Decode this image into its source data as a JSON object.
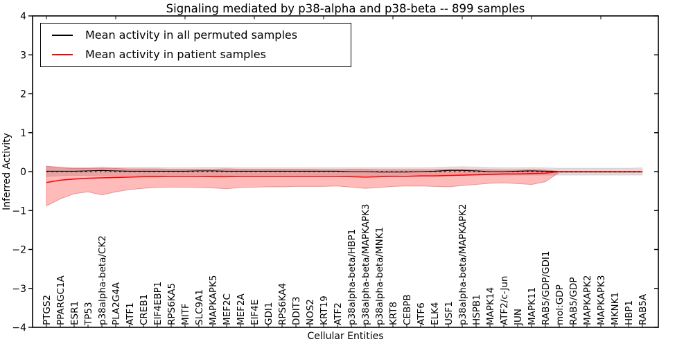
{
  "figure": {
    "title": "Signaling mediated by p38-alpha and p38-beta -- 899 samples",
    "xlabel": "Cellular Entities",
    "ylabel": "Inferred Activity"
  },
  "legend": {
    "items": [
      {
        "label": "Mean activity in all permuted samples",
        "color": "#000000"
      },
      {
        "label": "Mean activity in patient samples",
        "color": "#ff0000"
      }
    ]
  },
  "colors": {
    "patient_line": "#ff0000",
    "permuted_line": "#000000",
    "patient_band": "rgba(255,0,0,0.27)",
    "patient_band_edge": "rgba(255,0,0,0.35)",
    "permuted_band": "rgba(0,0,0,0.13)",
    "permuted_band_edge": "rgba(0,0,0,0.08)",
    "zero_line": "#000000",
    "axis": "#000000"
  },
  "chart_data": {
    "type": "line",
    "title": "Signaling mediated by p38-alpha and p38-beta -- 899 samples",
    "xlabel": "Cellular Entities",
    "ylabel": "Inferred Activity",
    "ylim": [
      -4,
      4
    ],
    "yticks": [
      4,
      3,
      2,
      1,
      0,
      -1,
      -2,
      -3,
      -4
    ],
    "grid": false,
    "legend_position": "upper left",
    "x_tick_rotation": 90,
    "categories": [
      "PTGS2",
      "PPARGC1A",
      "ESR1",
      "TP53",
      "p38alpha-beta/CK2",
      "PLA2G4A",
      "ATF1",
      "CREB1",
      "EIF4EBP1",
      "RPS6KA5",
      "MITF",
      "SLC9A1",
      "MAPKAPK5",
      "MEF2C",
      "MEF2A",
      "EIF4E",
      "GDI1",
      "RPS6KA4",
      "DDIT3",
      "NOS2",
      "KRT19",
      "ATF2",
      "p38alpha-beta/HBP1",
      "p38alpha-beta/MAPKAPK3",
      "p38alpha-beta/MNK1",
      "KRT8",
      "CEBPB",
      "ATF6",
      "ELK4",
      "USF1",
      "p38alpha-beta/MAPKAPK2",
      "HSPB1",
      "MAPK14",
      "ATF2/c-Jun",
      "JUN",
      "MAPK11",
      "RAB5/GDP/GDI1",
      "mol:GDP",
      "RAB5/GDP",
      "MAPKAPK2",
      "MAPKAPK3",
      "MKNK1",
      "HBP1",
      "RAB5A"
    ],
    "series": [
      {
        "name": "Mean activity in all permuted samples",
        "style": "line",
        "color": "#000000",
        "values": [
          0.01,
          0.01,
          0.01,
          0.02,
          0.03,
          0.02,
          0.01,
          0.01,
          0.01,
          0.01,
          0.01,
          0.02,
          0.02,
          0.01,
          0.01,
          0.01,
          0.01,
          0.01,
          0.01,
          0.01,
          0.01,
          0.01,
          0.0,
          0.0,
          -0.01,
          -0.01,
          -0.01,
          0.0,
          0.01,
          0.03,
          0.03,
          0.02,
          0.0,
          0.0,
          0.01,
          0.02,
          0.01,
          0.0,
          0.0,
          0.0,
          0.0,
          0.0,
          0.0,
          0.0
        ]
      },
      {
        "name": "Permuted samples band (mean +/- std)",
        "style": "band",
        "color": "rgba(0,0,0,0.13)",
        "upper": [
          0.14,
          0.12,
          0.11,
          0.11,
          0.12,
          0.11,
          0.11,
          0.11,
          0.11,
          0.1,
          0.1,
          0.11,
          0.11,
          0.11,
          0.1,
          0.1,
          0.1,
          0.1,
          0.1,
          0.1,
          0.1,
          0.1,
          0.1,
          0.1,
          0.1,
          0.1,
          0.1,
          0.1,
          0.11,
          0.12,
          0.13,
          0.12,
          0.11,
          0.1,
          0.1,
          0.11,
          0.1,
          0.09,
          0.09,
          0.09,
          0.09,
          0.09,
          0.09,
          0.1
        ],
        "lower": [
          -0.13,
          -0.11,
          -0.1,
          -0.1,
          -0.1,
          -0.1,
          -0.1,
          -0.1,
          -0.1,
          -0.09,
          -0.09,
          -0.09,
          -0.1,
          -0.1,
          -0.09,
          -0.09,
          -0.09,
          -0.09,
          -0.09,
          -0.09,
          -0.09,
          -0.09,
          -0.1,
          -0.1,
          -0.1,
          -0.1,
          -0.09,
          -0.09,
          -0.09,
          -0.1,
          -0.1,
          -0.1,
          -0.09,
          -0.09,
          -0.09,
          -0.09,
          -0.09,
          -0.09,
          -0.09,
          -0.09,
          -0.09,
          -0.09,
          -0.09,
          -0.09
        ]
      },
      {
        "name": "Mean activity in patient samples",
        "style": "line",
        "color": "#ff0000",
        "values": [
          -0.28,
          -0.22,
          -0.19,
          -0.17,
          -0.16,
          -0.15,
          -0.14,
          -0.13,
          -0.13,
          -0.12,
          -0.12,
          -0.12,
          -0.13,
          -0.13,
          -0.12,
          -0.12,
          -0.12,
          -0.12,
          -0.12,
          -0.12,
          -0.12,
          -0.12,
          -0.13,
          -0.14,
          -0.13,
          -0.12,
          -0.12,
          -0.11,
          -0.11,
          -0.1,
          -0.09,
          -0.08,
          -0.07,
          -0.06,
          -0.06,
          -0.05,
          -0.04,
          0.0,
          0.0,
          0.0,
          0.0,
          0.0,
          0.0,
          0.0
        ]
      },
      {
        "name": "Patient samples band (mean +/- std)",
        "style": "band",
        "color": "rgba(255,0,0,0.27)",
        "upper": [
          0.14,
          0.1,
          0.08,
          0.08,
          0.09,
          0.08,
          0.07,
          0.07,
          0.07,
          0.06,
          0.06,
          0.06,
          0.06,
          0.07,
          0.06,
          0.06,
          0.06,
          0.06,
          0.06,
          0.06,
          0.05,
          0.05,
          0.06,
          0.06,
          0.05,
          0.05,
          0.05,
          0.05,
          0.05,
          0.06,
          0.06,
          0.05,
          0.05,
          0.04,
          0.04,
          0.05,
          0.04,
          0.01,
          0.01,
          0.01,
          0.01,
          0.01,
          0.01,
          0.01
        ],
        "lower": [
          -0.88,
          -0.7,
          -0.57,
          -0.52,
          -0.6,
          -0.52,
          -0.46,
          -0.43,
          -0.41,
          -0.4,
          -0.4,
          -0.41,
          -0.42,
          -0.44,
          -0.41,
          -0.4,
          -0.39,
          -0.39,
          -0.38,
          -0.38,
          -0.38,
          -0.37,
          -0.4,
          -0.43,
          -0.41,
          -0.38,
          -0.37,
          -0.37,
          -0.38,
          -0.39,
          -0.36,
          -0.33,
          -0.3,
          -0.29,
          -0.31,
          -0.33,
          -0.26,
          -0.02,
          -0.02,
          -0.02,
          -0.02,
          -0.02,
          -0.02,
          -0.02
        ]
      },
      {
        "name": "Zero reference line",
        "style": "dashed-line",
        "color": "#000000",
        "value": 0
      }
    ]
  }
}
